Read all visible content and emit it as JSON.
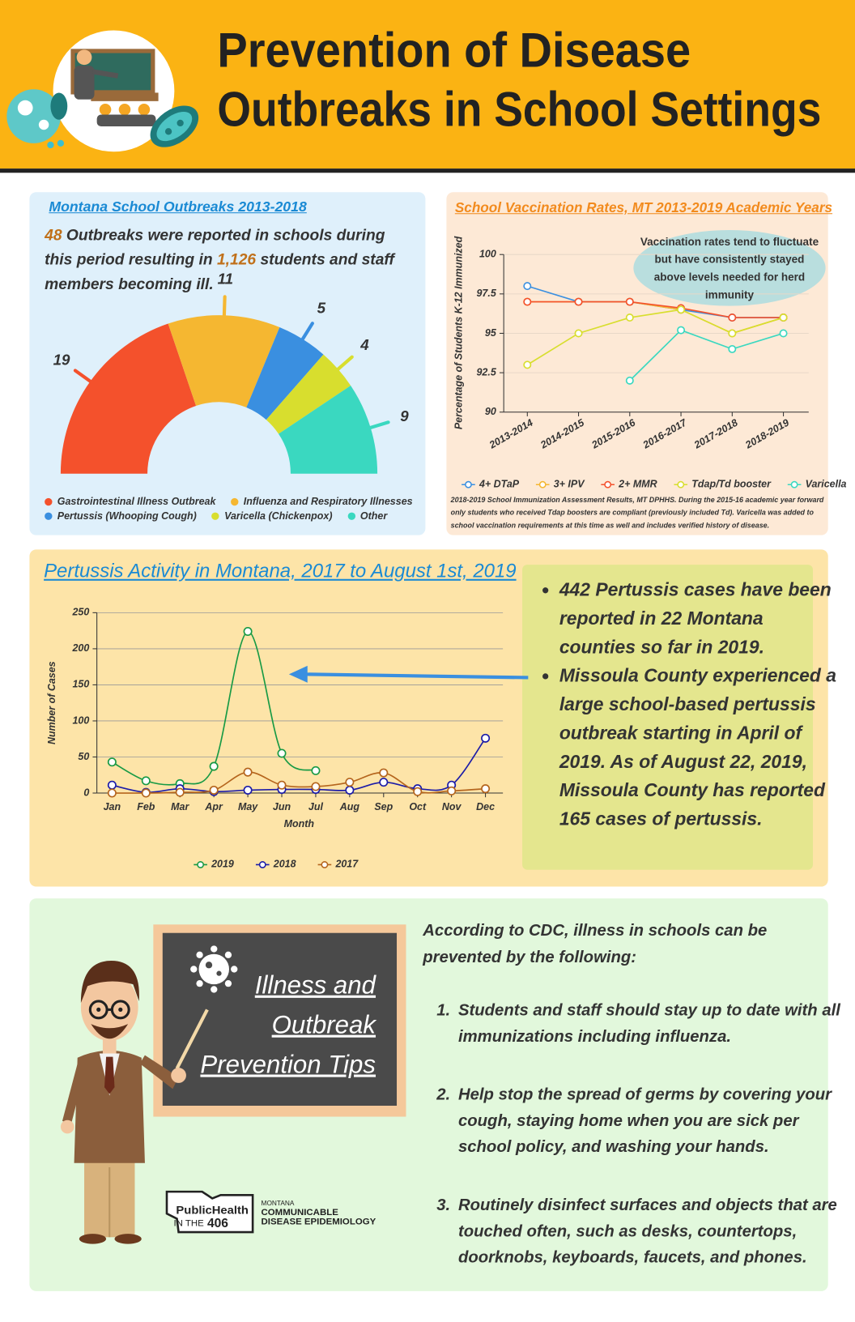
{
  "header": {
    "title_lines": [
      "Prevention of  Disease",
      "Outbreaks in School Settings"
    ]
  },
  "chart_data": [
    {
      "type": "pie",
      "title": "Montana School Outbreaks 2013-2018",
      "summary": [
        {
          "text": "48",
          "highlight": true
        },
        {
          "text": " Outbreaks were reported in schools during this period resulting in ",
          "highlight": false
        },
        {
          "text": "1,126",
          "highlight": true
        },
        {
          "text": " students and staff members becoming ill.",
          "highlight": false
        }
      ],
      "categories": [
        "Gastrointestinal Illness Outbreak",
        "Influenza and Respiratory Illnesses",
        "Pertussis (Whooping Cough)",
        "Varicella (Chickenpox)",
        "Other"
      ],
      "values": [
        19,
        11,
        5,
        4,
        9
      ],
      "colors": [
        "#f4512c",
        "#f5b731",
        "#3a8fe0",
        "#d8de2e",
        "#3ad8c0"
      ]
    },
    {
      "type": "line",
      "title": "School Vaccination Rates, MT 2013-2019 Academic Years",
      "ylabel": "Percentage of Students K-12 Immunized",
      "categories": [
        "2013-2014",
        "2014-2015",
        "2015-2016",
        "2016-2017",
        "2017-2018",
        "2018-2019"
      ],
      "series": [
        {
          "name": "4+ DTaP",
          "color": "#3a8fe0",
          "values": [
            98,
            97,
            97,
            96.5,
            96,
            96
          ]
        },
        {
          "name": "3+ IPV",
          "color": "#f5b731",
          "values": [
            97,
            97,
            97,
            96.5,
            95,
            96
          ]
        },
        {
          "name": "2+ MMR",
          "color": "#f4512c",
          "values": [
            97,
            97,
            97,
            96.6,
            96,
            96
          ]
        },
        {
          "name": "Tdap/Td booster",
          "color": "#d8de2e",
          "values": [
            93,
            95,
            96,
            96.5,
            95,
            96
          ]
        },
        {
          "name": "Varicella",
          "color": "#3ad8c0",
          "values": [
            null,
            null,
            92,
            95.2,
            94,
            95
          ]
        }
      ],
      "ylim": [
        90,
        100
      ],
      "yticks": [
        90,
        92.5,
        95,
        97.5,
        100
      ],
      "grid": true,
      "smooth": false,
      "annotation": "Vaccination rates tend to fluctuate but have consistently stayed above levels needed for herd immunity",
      "source_note": "2018-2019 School Immunization Assessment Results, MT DPHHS. During the 2015-16 academic year forward only students who received Tdap boosters are compliant (previously included Td). Varicella was added to school vaccination requirements at this time as well and includes verified history of disease."
    },
    {
      "type": "line",
      "title": "Pertussis Activity in Montana, 2017 to August 1st, 2019",
      "xlabel": "Month",
      "ylabel": "Number of Cases",
      "categories": [
        "Jan",
        "Feb",
        "Mar",
        "Apr",
        "May",
        "Jun",
        "Jul",
        "Aug",
        "Sep",
        "Oct",
        "Nov",
        "Dec"
      ],
      "series": [
        {
          "name": "2019",
          "color": "#189a45",
          "values": [
            43,
            17,
            13,
            37,
            224,
            55,
            31,
            null,
            null,
            null,
            null,
            null
          ]
        },
        {
          "name": "2018",
          "color": "#1c1ca8",
          "values": [
            11,
            1,
            6,
            2,
            4,
            5,
            5,
            4,
            15,
            6,
            11,
            76
          ]
        },
        {
          "name": "2017",
          "color": "#b5651d",
          "values": [
            0,
            0,
            1,
            4,
            29,
            11,
            9,
            15,
            28,
            2,
            3,
            6
          ]
        }
      ],
      "ylim": [
        0,
        250
      ],
      "yticks": [
        0,
        50,
        100,
        150,
        200,
        250
      ],
      "grid": true,
      "smooth": true,
      "notes": [
        "442 Pertussis cases have been reported in 22 Montana counties so far in 2019.",
        "Missoula County experienced a large school-based pertussis outbreak starting in April of 2019.  As of August 22, 2019, Missoula County has reported 165 cases of pertussis."
      ]
    }
  ],
  "tips": {
    "board_title": [
      "Illness and",
      "Outbreak",
      "Prevention Tips"
    ],
    "intro": "According to CDC, illness in schools can be prevented by the following:",
    "items": [
      "Students and staff should stay up to date with all immunizations including influenza.",
      "Help stop the spread of germs by covering your cough, staying home when you are sick per school policy, and washing your hands.",
      "Routinely disinfect surfaces and objects that are touched often, such as desks, countertops, doorknobs, keyboards, faucets, and phones."
    ]
  },
  "logo": {
    "brand": "PublicHealth",
    "sub": "IN THE",
    "number": "406",
    "org_lines": [
      "MONTANA",
      "COMMUNICABLE",
      "DISEASE EPIDEMIOLOGY"
    ]
  }
}
